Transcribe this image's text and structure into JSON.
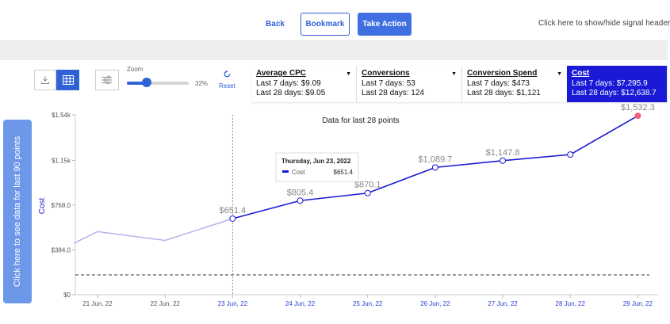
{
  "header": {
    "back_label": "Back",
    "bookmark_label": "Bookmark",
    "take_action_label": "Take Action",
    "toggle_header_text": "Click here to show/hide signal header"
  },
  "toolbar": {
    "download_icon": "download-icon",
    "grid_icon": "grid-icon",
    "settings_icon": "sliders-icon",
    "zoom_label": "Zoom",
    "zoom_value": 32,
    "zoom_value_text": "32%",
    "reset_label": "Reset"
  },
  "metrics": [
    {
      "title": "Average CPC",
      "last7": "Last 7 days: $9.09",
      "last28": "Last 28 days: $9.05",
      "selected": false
    },
    {
      "title": "Conversions",
      "last7": "Last 7 days: 53",
      "last28": "Last 28 days: 124",
      "selected": false
    },
    {
      "title": "Conversion Spend",
      "last7": "Last 7 days: $473",
      "last28": "Last 28 days: $1,121",
      "selected": false
    },
    {
      "title": "Cost",
      "last7": "Last 7 days: $7,295.9",
      "last28": "Last 28 days: $12,638.7",
      "selected": true
    }
  ],
  "side_tab": {
    "label": "Click here to see data for last 90 points"
  },
  "chart_data": {
    "type": "line",
    "title": "Data for last 28 points",
    "ylabel": "Cost",
    "ylim": [
      0,
      1540
    ],
    "y_ticks": [
      0,
      384,
      768,
      1150,
      1540
    ],
    "y_tick_labels": [
      "$0",
      "$384.0",
      "$768.0",
      "$1.15k",
      "$1.54k"
    ],
    "x": [
      "21 Jun, 22",
      "22 Jun, 22",
      "23 Jun, 22",
      "24 Jun, 22",
      "25 Jun, 22",
      "26 Jun, 22",
      "27 Jun, 22",
      "28 Jun, 22",
      "29 Jun, 22"
    ],
    "faded_points": [
      {
        "x": "20 Jun, 22",
        "y": 440
      },
      {
        "x": "21 Jun, 22",
        "y": 540
      },
      {
        "x": "22 Jun, 22",
        "y": 465
      },
      {
        "x": "23 Jun, 22",
        "y": 651.4
      }
    ],
    "series": [
      {
        "values": [
          {
            "x": "23 Jun, 22",
            "y": 651.4,
            "label": "$651.4"
          },
          {
            "x": "24 Jun, 22",
            "y": 805.4,
            "label": "$805.4"
          },
          {
            "x": "25 Jun, 22",
            "y": 870.1,
            "label": "$870.1"
          },
          {
            "x": "26 Jun, 22",
            "y": 1089.7,
            "label": "$1,089.7"
          },
          {
            "x": "27 Jun, 22",
            "y": 1147.8,
            "label": "$1,147.8"
          },
          {
            "x": "28 Jun, 22",
            "y": 1200,
            "label": ""
          },
          {
            "x": "29 Jun, 22",
            "y": 1532.3,
            "label": "$1,532.3"
          }
        ]
      }
    ],
    "reference_line": 170,
    "crosshair_x": "23 Jun, 22",
    "highlight_x": [
      "23 Jun, 22",
      "24 Jun, 22",
      "25 Jun, 22",
      "26 Jun, 22",
      "27 Jun, 22",
      "28 Jun, 22",
      "29 Jun, 22"
    ],
    "tooltip": {
      "date": "Thursday, Jun 23, 2022",
      "series": "Cost",
      "value": "$651.4"
    },
    "colors": {
      "line": "#1a1ad6",
      "faded": "#b3b3ea",
      "last_point": "#f06277",
      "highlight_tick": "#2a3fd6",
      "tick": "#555555"
    }
  }
}
